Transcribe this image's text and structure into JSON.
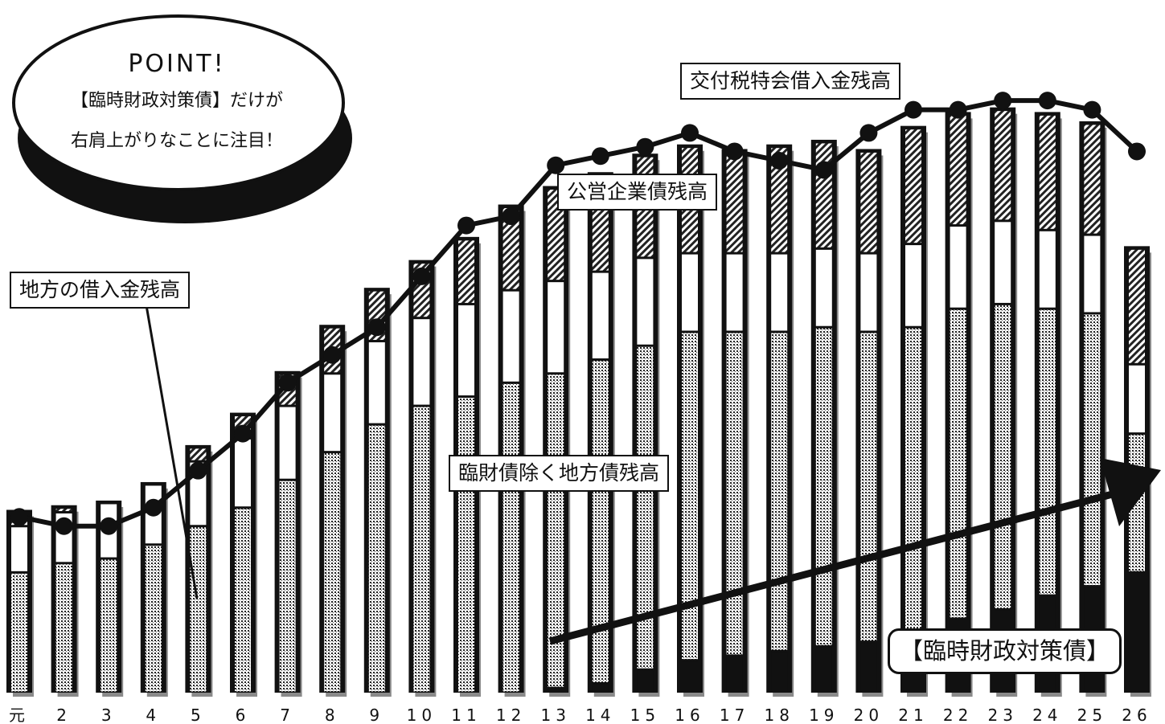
{
  "chart_data": {
    "type": "bar",
    "stacked": true,
    "categories": [
      "元",
      "2",
      "3",
      "4",
      "5",
      "6",
      "7",
      "8",
      "9",
      "10",
      "11",
      "12",
      "13",
      "14",
      "15",
      "16",
      "17",
      "18",
      "19",
      "20",
      "21",
      "22",
      "23",
      "24",
      "25",
      "26"
    ],
    "series": [
      {
        "name": "【臨時財政対策債】",
        "pattern": "solid",
        "values": [
          0,
          0,
          0,
          0,
          0,
          0,
          0,
          0,
          0,
          0,
          0,
          0,
          1,
          2,
          5,
          7,
          8,
          9,
          10,
          11,
          13,
          16,
          18,
          21,
          23,
          26
        ]
      },
      {
        "name": "臨財債除く地方債残高",
        "pattern": "dots",
        "values": [
          26,
          28,
          29,
          32,
          36,
          40,
          46,
          52,
          58,
          62,
          64,
          67,
          68,
          70,
          70,
          71,
          70,
          69,
          69,
          67,
          66,
          67,
          66,
          62,
          59,
          30
        ]
      },
      {
        "name": "公営企業債残高",
        "pattern": "white",
        "values": [
          10,
          11,
          12,
          13,
          14,
          15,
          16,
          17,
          18,
          19,
          20,
          20,
          20,
          19,
          19,
          17,
          17,
          17,
          17,
          17,
          18,
          18,
          18,
          17,
          17,
          15
        ]
      },
      {
        "name": "交付税特会借入金残高",
        "pattern": "hatch",
        "values": [
          3,
          1,
          0,
          0,
          3,
          5,
          7,
          10,
          11,
          12,
          14,
          18,
          20,
          21,
          22,
          23,
          22,
          23,
          23,
          22,
          25,
          24,
          24,
          25,
          24,
          25
        ]
      }
    ],
    "line": {
      "name": "地方の借入金残高",
      "values": [
        38,
        36,
        36,
        40,
        48,
        56,
        67,
        73,
        79,
        90,
        101,
        103,
        114,
        116,
        118,
        121,
        117,
        115,
        113,
        121,
        126,
        126,
        128,
        128,
        126,
        117
      ]
    },
    "ymax": 148,
    "annotations": {
      "point_title": "POINT!",
      "point_line1": "【臨時財政対策債】だけが",
      "point_line2": "右肩上がりなことに注目！",
      "label_kofuzei": "交付税特会借入金残高",
      "label_koei": "公営企業債残高",
      "label_chiho": "地方の借入金残高",
      "label_rinzai_jogai": "臨財債除く地方債残高",
      "label_rinzai": "【臨時財政対策債】"
    },
    "colors": {
      "ink": "#111111",
      "paper": "#ffffff",
      "shadow": "#8a8a8a"
    }
  }
}
